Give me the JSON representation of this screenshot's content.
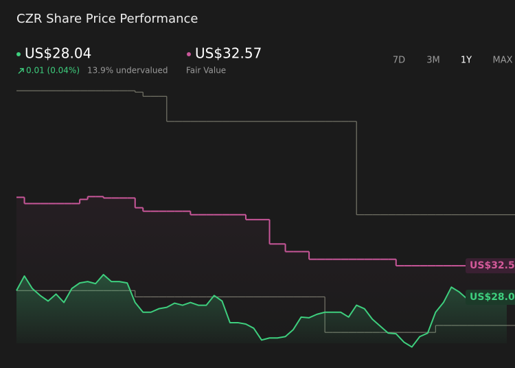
{
  "header": {
    "title": "CZR Share Price Performance",
    "price": "US$28.04",
    "change": "0.01 (0.04%)",
    "valuation": "13.9% undervalued",
    "fair_value": "US$32.57",
    "fair_value_label": "Fair Value"
  },
  "range_buttons": [
    "7D",
    "3M",
    "1Y",
    "MAX"
  ],
  "active_range": "1Y",
  "chart_data": {
    "type": "line",
    "ylim": [
      20.5,
      59
    ],
    "series": [
      {
        "color": "#77776a",
        "step": true,
        "values": [
          57.7,
          57.7,
          57.7,
          57.7,
          57.7,
          57.7,
          57.7,
          57.7,
          57.7,
          57.7,
          57.7,
          57.7,
          57.7,
          57.7,
          57.7,
          57.5,
          56.9,
          56.9,
          56.9,
          53.3,
          53.3,
          53.3,
          53.3,
          53.3,
          53.3,
          53.3,
          53.3,
          53.3,
          53.3,
          53.3,
          53.3,
          53.3,
          53.3,
          53.3,
          53.3,
          53.3,
          53.3,
          53.3,
          53.3,
          53.3,
          53.3,
          53.3,
          53.3,
          39.9,
          39.9,
          39.9,
          39.9,
          39.9,
          39.9,
          39.9,
          39.9,
          39.9,
          39.9,
          39.9,
          39.9,
          39.9,
          39.9,
          39.9,
          39.9,
          39.9,
          39.9,
          39.9,
          39.9
        ]
      },
      {
        "color": "#77776a",
        "step": true,
        "values": [
          29.0,
          29.0,
          29.0,
          29.0,
          29.0,
          29.0,
          29.0,
          29.0,
          29.0,
          29.0,
          29.0,
          29.0,
          29.0,
          29.0,
          29.0,
          28.1,
          28.1,
          28.1,
          28.1,
          28.1,
          28.1,
          28.1,
          28.1,
          28.1,
          28.1,
          28.1,
          28.1,
          28.1,
          28.1,
          28.1,
          28.1,
          28.1,
          28.1,
          28.1,
          28.1,
          28.1,
          28.1,
          28.1,
          28.1,
          23.0,
          23.0,
          23.0,
          23.0,
          23.0,
          23.0,
          23.0,
          23.0,
          23.0,
          23.0,
          23.0,
          23.0,
          23.0,
          23.0,
          24.0,
          24.0,
          24.0,
          24.0,
          24.0,
          24.0,
          24.0,
          24.0,
          24.0,
          24.0
        ]
      },
      {
        "color": "#c9579a",
        "step": true,
        "fill": "#c9579a",
        "values": [
          42.4,
          41.5,
          41.5,
          41.5,
          41.5,
          41.5,
          41.5,
          41.5,
          42.1,
          42.5,
          42.5,
          42.3,
          42.3,
          42.3,
          42.3,
          40.9,
          40.4,
          40.4,
          40.4,
          40.4,
          40.4,
          40.4,
          39.9,
          39.9,
          39.9,
          39.9,
          39.9,
          39.9,
          39.9,
          39.2,
          39.2,
          39.2,
          35.7,
          35.7,
          34.6,
          34.6,
          34.6,
          33.5,
          33.5,
          33.5,
          33.5,
          33.5,
          33.5,
          33.5,
          33.5,
          33.5,
          33.5,
          33.5,
          32.57,
          32.57,
          32.57,
          32.57,
          32.57,
          32.57,
          32.57,
          32.57,
          32.57,
          32.57,
          32.57,
          32.57,
          32.57,
          32.57,
          32.57
        ]
      },
      {
        "color": "#3ecf7e",
        "step": false,
        "fill": "#3ecf7e",
        "values": [
          29.0,
          31.1,
          29.3,
          28.3,
          27.5,
          28.5,
          27.3,
          29.3,
          30.1,
          30.3,
          30.0,
          31.3,
          30.3,
          30.3,
          30.1,
          27.3,
          25.9,
          25.9,
          26.4,
          26.6,
          27.2,
          26.9,
          27.3,
          26.9,
          26.9,
          28.3,
          27.5,
          24.4,
          24.4,
          24.2,
          23.6,
          21.9,
          22.2,
          22.2,
          22.4,
          23.4,
          25.2,
          25.1,
          25.6,
          25.9,
          25.9,
          25.9,
          25.2,
          26.9,
          26.4,
          24.9,
          23.9,
          22.9,
          22.8,
          21.6,
          20.9,
          22.4,
          22.9,
          25.9,
          27.3,
          29.5,
          28.8,
          27.8,
          27.3,
          27.8,
          28.3,
          28.3,
          28.04
        ]
      }
    ]
  }
}
